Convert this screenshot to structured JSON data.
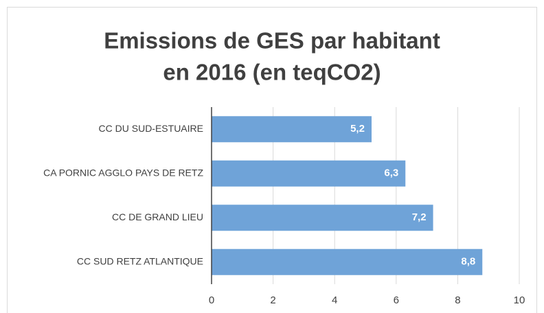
{
  "chart_data": {
    "type": "bar",
    "orientation": "horizontal",
    "title": [
      "Emissions de GES par habitant",
      "en 2016 (en teqCO2)"
    ],
    "categories": [
      "CC DU SUD-ESTUAIRE",
      "CA PORNIC AGGLO PAYS DE RETZ",
      "CC DE GRAND LIEU",
      "CC SUD RETZ ATLANTIQUE"
    ],
    "values": [
      5.2,
      6.3,
      7.2,
      8.8
    ],
    "value_labels": [
      "5,2",
      "6,3",
      "7,2",
      "8,8"
    ],
    "color": "#6fa3d8",
    "xlim": [
      0,
      10
    ],
    "xticks": [
      0,
      2,
      4,
      6,
      8,
      10
    ],
    "grid": true
  }
}
